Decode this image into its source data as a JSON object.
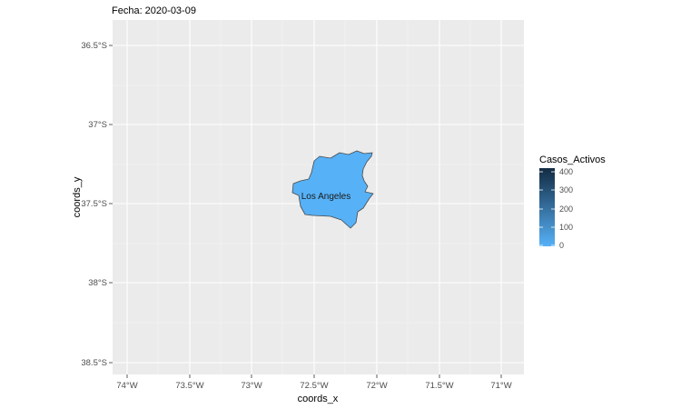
{
  "title": "Fecha: 2020-03-09",
  "axes": {
    "x_label": "coords_x",
    "y_label": "coords_y",
    "x_ticks": [
      "74°W",
      "73.5°W",
      "73°W",
      "72.5°W",
      "72°W",
      "71.5°W",
      "71°W"
    ],
    "y_ticks": [
      "36.5°S",
      "37°S",
      "37.5°S",
      "38°S",
      "38.5°S"
    ]
  },
  "legend": {
    "title": "Casos_Activos",
    "labels": [
      "400",
      "300",
      "200",
      "100",
      "0"
    ],
    "color_low": "#56B1F7",
    "color_high": "#132B43"
  },
  "region": {
    "name": "Los Angeles",
    "fill": "#56B1F7",
    "outline": "#4a4a4a"
  },
  "colors": {
    "panel_background": "#EBEBEB",
    "grid": "#ffffff"
  }
}
